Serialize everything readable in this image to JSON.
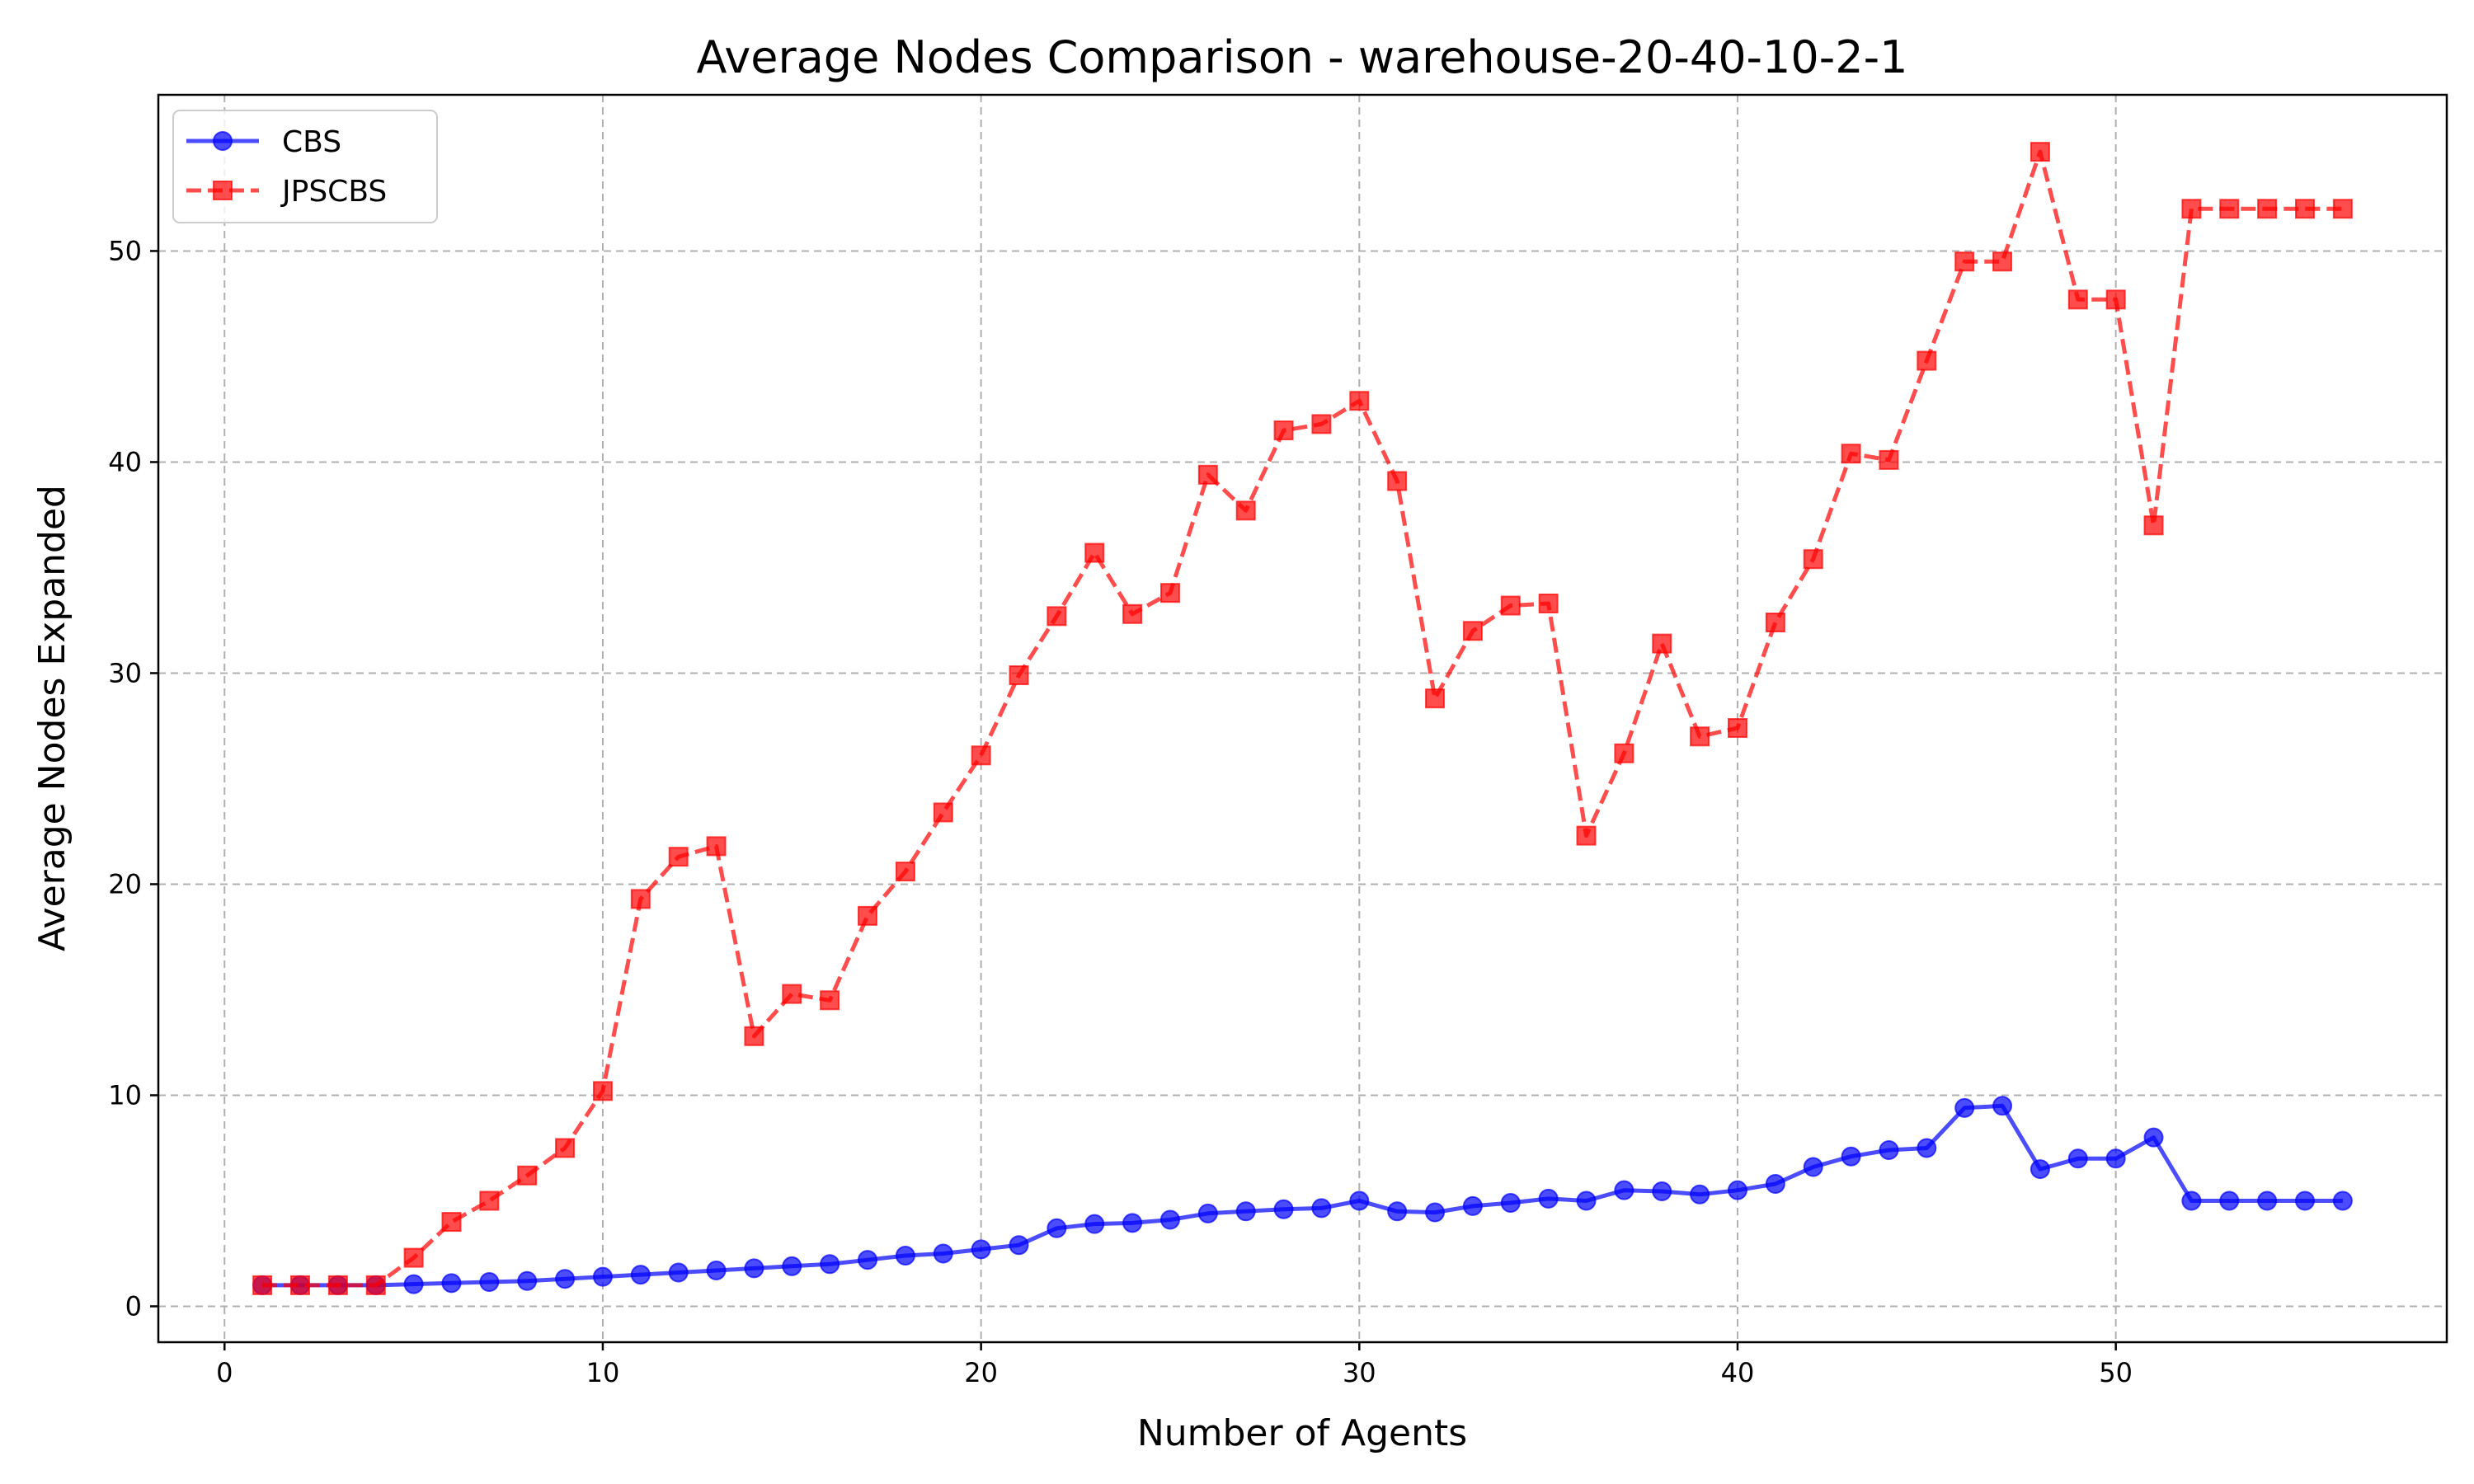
{
  "chart_data": {
    "type": "line",
    "title": "Average Nodes Comparison - warehouse-20-40-10-2-1",
    "xlabel": "Number of Agents",
    "ylabel": "Average Nodes Expanded",
    "xlim": [
      -1.75,
      58.75
    ],
    "ylim": [
      -1.7,
      57.4
    ],
    "xticks": [
      0,
      10,
      20,
      30,
      40,
      50
    ],
    "yticks": [
      0,
      10,
      20,
      30,
      40,
      50
    ],
    "grid": true,
    "legend_position": "top-left",
    "x": [
      1,
      2,
      3,
      4,
      5,
      6,
      7,
      8,
      9,
      10,
      11,
      12,
      13,
      14,
      15,
      16,
      17,
      18,
      19,
      20,
      21,
      22,
      23,
      24,
      25,
      26,
      27,
      28,
      29,
      30,
      31,
      32,
      33,
      34,
      35,
      36,
      37,
      38,
      39,
      40,
      41,
      42,
      43,
      44,
      45,
      46,
      47,
      48,
      49,
      50,
      51,
      52,
      53,
      54,
      55,
      56
    ],
    "series": [
      {
        "name": "CBS",
        "color": "#0000ff",
        "line_style": "solid",
        "marker": "circle",
        "values": [
          1.0,
          1.0,
          1.0,
          1.0,
          1.05,
          1.1,
          1.15,
          1.2,
          1.3,
          1.4,
          1.5,
          1.6,
          1.7,
          1.8,
          1.9,
          2.0,
          2.2,
          2.4,
          2.5,
          2.7,
          2.9,
          3.7,
          3.9,
          3.95,
          4.1,
          4.4,
          4.5,
          4.6,
          4.65,
          5.0,
          4.5,
          4.45,
          4.75,
          4.9,
          5.1,
          5.0,
          5.5,
          5.45,
          5.3,
          5.5,
          5.8,
          6.6,
          7.1,
          7.4,
          7.5,
          9.4,
          9.5,
          6.5,
          7.0,
          7.0,
          8.0,
          5.0,
          5.0,
          5.0,
          5.0,
          5.0
        ]
      },
      {
        "name": "JPSCBS",
        "color": "#ff0000",
        "line_style": "dashed",
        "marker": "square",
        "values": [
          1.0,
          1.0,
          1.0,
          1.0,
          2.3,
          4.0,
          5.0,
          6.2,
          7.5,
          10.2,
          19.3,
          21.3,
          21.8,
          12.8,
          14.8,
          14.5,
          18.5,
          20.6,
          23.4,
          26.1,
          29.9,
          32.7,
          35.7,
          32.8,
          33.8,
          39.4,
          37.7,
          41.5,
          41.8,
          42.9,
          39.1,
          28.8,
          32.0,
          33.2,
          33.3,
          22.3,
          26.2,
          31.4,
          27.0,
          27.4,
          32.4,
          35.4,
          40.4,
          40.1,
          44.8,
          49.5,
          49.5,
          54.7,
          47.7,
          47.7,
          37.0,
          52.0,
          52.0,
          52.0,
          52.0,
          52.0
        ]
      }
    ]
  }
}
